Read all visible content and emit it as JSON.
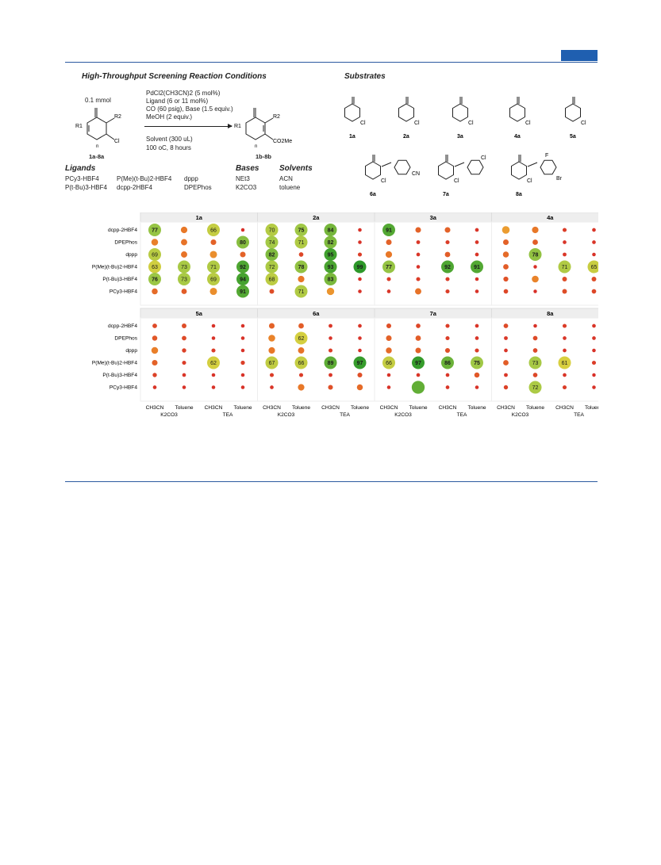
{
  "conditions": {
    "title": "High-Throughput Screening Reaction Conditions",
    "amount": "0.1 mmol",
    "reagents": [
      "PdCl2(CH3CN)2 (5 mol%)",
      "Ligand (6 or 11 mol%)",
      "CO (60 psig), Base (1.5 equiv.)",
      "MeOH (2 equiv.)"
    ],
    "solvent_line": "Solvent (300 uL)",
    "temp_line": "100 oC, 8 hours",
    "start_label": "1a-8a",
    "product_label": "1b-8b",
    "sm_labels": {
      "r1": "R1",
      "r2": "R2",
      "cl": "Cl",
      "n": "n"
    },
    "pd_labels": {
      "r1": "R1",
      "r2": "R2",
      "co2me": "CO2Me",
      "n": "n"
    }
  },
  "substrates": {
    "title": "Substrates",
    "labels": [
      "1a",
      "2a",
      "3a",
      "4a",
      "5a",
      "6a",
      "7a",
      "8a"
    ],
    "cn": "CN",
    "f": "F",
    "br": "Br",
    "cl": "Cl"
  },
  "ligands": {
    "title": "Ligands",
    "items": [
      "PCy3-HBF4",
      "P(Me)(t-Bu)2-HBF4",
      "dppp",
      "P(t-Bu)3-HBF4",
      "dcpp-2HBF4",
      "DPEPhos"
    ]
  },
  "bases": {
    "title": "Bases",
    "items": [
      "NEt3",
      "K2CO3"
    ]
  },
  "solvents": {
    "title": "Solvents",
    "items": [
      "ACN",
      "toluene"
    ]
  },
  "chart_data": {
    "type": "scatter",
    "encoding": "bubble grid; circle size/colour = yield, labels shown for higher yields",
    "rows": [
      "dcpp-2HBF4",
      "DPEPhos",
      "dppp",
      "P(Me)(t-Bu)2-HBF4",
      "P(t-Bu)3-HBF4",
      "PCy3-HBF4"
    ],
    "columns": [
      "CH3CN",
      "Toluene",
      "CH3CN",
      "Toluene"
    ],
    "column_groups": [
      "K2CO3",
      "TEA"
    ],
    "panels": [
      {
        "name": "1a",
        "cells": [
          [
            77,
            30,
            66,
            3
          ],
          [
            32,
            28,
            22,
            80
          ],
          [
            69,
            28,
            36,
            22
          ],
          [
            63,
            73,
            71,
            92
          ],
          [
            76,
            73,
            69,
            94
          ],
          [
            25,
            20,
            36,
            91
          ]
        ],
        "labels": [
          [
            "77",
            "",
            "66",
            ""
          ],
          [
            "",
            "",
            "",
            "80"
          ],
          [
            "69",
            "",
            "",
            ""
          ],
          [
            "63",
            "73",
            "71",
            "92"
          ],
          [
            "76",
            "73",
            "69",
            "94"
          ],
          [
            "",
            "",
            "",
            "91"
          ]
        ]
      },
      {
        "name": "2a",
        "cells": [
          [
            70,
            75,
            84,
            4
          ],
          [
            74,
            71,
            82,
            4
          ],
          [
            82,
            12,
            95,
            8
          ],
          [
            72,
            78,
            93,
            99
          ],
          [
            68,
            30,
            83,
            4
          ],
          [
            14,
            71,
            38,
            4
          ]
        ],
        "labels": [
          [
            "70",
            "75",
            "84",
            ""
          ],
          [
            "74",
            "71",
            "82",
            ""
          ],
          [
            "82",
            "",
            "95",
            ""
          ],
          [
            "72",
            "78",
            "93",
            "99"
          ],
          [
            "68",
            "",
            "83",
            ""
          ],
          [
            "",
            "71",
            "",
            ""
          ]
        ]
      },
      {
        "name": "3a",
        "cells": [
          [
            91,
            22,
            22,
            5
          ],
          [
            22,
            6,
            8,
            5
          ],
          [
            30,
            5,
            20,
            5
          ],
          [
            77,
            4,
            92,
            91
          ],
          [
            8,
            8,
            8,
            4
          ],
          [
            5,
            28,
            8,
            4
          ]
        ],
        "labels": [
          [
            "91",
            "",
            "",
            ""
          ],
          [
            "",
            "",
            "",
            ""
          ],
          [
            "",
            "",
            "",
            ""
          ],
          [
            "77",
            "",
            "92",
            "91"
          ],
          [
            "",
            "",
            "",
            ""
          ],
          [
            "",
            "",
            "",
            ""
          ]
        ]
      },
      {
        "name": "4a",
        "cells": [
          [
            40,
            30,
            8,
            5
          ],
          [
            22,
            20,
            5,
            5
          ],
          [
            25,
            78,
            6,
            4
          ],
          [
            20,
            3,
            71,
            65
          ],
          [
            16,
            33,
            14,
            14
          ],
          [
            12,
            3,
            14,
            12
          ]
        ],
        "labels": [
          [
            "",
            "",
            "",
            ""
          ],
          [
            "",
            "",
            "",
            ""
          ],
          [
            "",
            "78",
            "",
            ""
          ],
          [
            "",
            "",
            "71",
            "65"
          ],
          [
            "",
            "",
            "",
            ""
          ],
          [
            "",
            "",
            "",
            ""
          ]
        ]
      },
      {
        "name": "5a",
        "cells": [
          [
            13,
            14,
            4,
            4
          ],
          [
            18,
            13,
            4,
            4
          ],
          [
            32,
            10,
            8,
            4
          ],
          [
            22,
            8,
            62,
            9
          ],
          [
            10,
            5,
            4,
            4
          ],
          [
            5,
            4,
            4,
            4
          ]
        ],
        "labels": [
          [
            "",
            "",
            "",
            ""
          ],
          [
            "",
            "",
            "",
            ""
          ],
          [
            "",
            "",
            "",
            ""
          ],
          [
            "",
            "",
            "62",
            ""
          ],
          [
            "",
            "",
            "",
            ""
          ],
          [
            "",
            "",
            "",
            ""
          ]
        ]
      },
      {
        "name": "6a",
        "cells": [
          [
            22,
            20,
            6,
            5
          ],
          [
            33,
            62,
            4,
            4
          ],
          [
            30,
            28,
            8,
            4
          ],
          [
            67,
            66,
            89,
            97
          ],
          [
            8,
            8,
            6,
            15
          ],
          [
            5,
            30,
            15,
            25
          ]
        ],
        "labels": [
          [
            "",
            "",
            "",
            ""
          ],
          [
            "",
            "62",
            "",
            ""
          ],
          [
            "",
            "",
            "",
            ""
          ],
          [
            "67",
            "66",
            "89",
            "97"
          ],
          [
            "",
            "",
            "",
            ""
          ],
          [
            "",
            "",
            "",
            ""
          ]
        ]
      },
      {
        "name": "7a",
        "cells": [
          [
            15,
            12,
            8,
            5
          ],
          [
            22,
            20,
            8,
            5
          ],
          [
            25,
            22,
            15,
            8
          ],
          [
            66,
            97,
            86,
            75
          ],
          [
            4,
            5,
            5,
            18
          ],
          [
            4,
            88,
            5,
            4
          ]
        ],
        "labels": [
          [
            "",
            "",
            "",
            ""
          ],
          [
            "",
            "",
            "",
            ""
          ],
          [
            "",
            "",
            "",
            ""
          ],
          [
            "66",
            "97",
            "86",
            "75"
          ],
          [
            "",
            "",
            "",
            ""
          ],
          [
            "",
            "",
            "",
            ""
          ]
        ]
      },
      {
        "name": "8a",
        "cells": [
          [
            13,
            4,
            8,
            5
          ],
          [
            6,
            13,
            5,
            5
          ],
          [
            5,
            12,
            5,
            4
          ],
          [
            20,
            73,
            61,
            8
          ],
          [
            6,
            12,
            5,
            3
          ],
          [
            10,
            72,
            8,
            4
          ]
        ],
        "labels": [
          [
            "",
            "",
            "",
            ""
          ],
          [
            "",
            "",
            "",
            ""
          ],
          [
            "",
            "",
            "",
            ""
          ],
          [
            "",
            "73",
            "61",
            ""
          ],
          [
            "",
            "",
            "",
            ""
          ],
          [
            "",
            "72",
            "",
            ""
          ]
        ]
      }
    ],
    "size_scale": [
      [
        40,
        30,
        8,
        5
      ],
      [
        32,
        25,
        6,
        5
      ],
      [
        33,
        25,
        6,
        4
      ],
      [
        25,
        25,
        25,
        25
      ],
      [
        20,
        20,
        20,
        35
      ],
      [
        20,
        25,
        10,
        8
      ]
    ]
  }
}
